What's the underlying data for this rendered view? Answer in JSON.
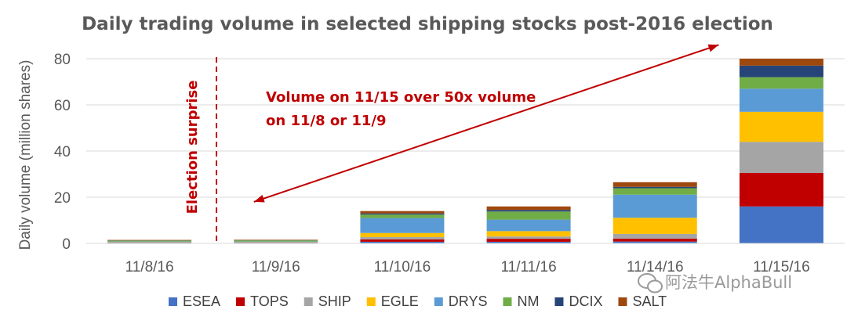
{
  "chart_data": {
    "type": "bar",
    "stacked": true,
    "title": "Daily trading volume in selected shipping stocks post-2016 election",
    "ylabel": "Daily volume (million shares)",
    "xlabel": "",
    "ylim": [
      0,
      80
    ],
    "yticks": [
      0,
      20,
      40,
      60,
      80
    ],
    "grid": true,
    "legend_position": "bottom",
    "categories": [
      "11/8/16",
      "11/9/16",
      "11/10/16",
      "11/11/16",
      "11/14/16",
      "11/15/16"
    ],
    "series": [
      {
        "name": "ESEA",
        "color": "#4472c4",
        "values": [
          0.3,
          0.3,
          0.7,
          0.7,
          0.8,
          16
        ]
      },
      {
        "name": "TOPS",
        "color": "#c00000",
        "values": [
          0.1,
          0.1,
          1.0,
          1.3,
          1.3,
          14.5
        ]
      },
      {
        "name": "SHIP",
        "color": "#a5a5a5",
        "values": [
          0.1,
          0.1,
          1.0,
          1.0,
          2.0,
          13.5
        ]
      },
      {
        "name": "EGLE",
        "color": "#ffc000",
        "values": [
          0.1,
          0.1,
          1.8,
          2.3,
          7.0,
          13
        ]
      },
      {
        "name": "DRYS",
        "color": "#5b9bd5",
        "values": [
          0.2,
          0.2,
          6.5,
          5.0,
          10.0,
          10
        ]
      },
      {
        "name": "NM",
        "color": "#70ad47",
        "values": [
          0.4,
          0.5,
          1.5,
          3.5,
          2.8,
          5
        ]
      },
      {
        "name": "DCIX",
        "color": "#264478",
        "values": [
          0.1,
          0.1,
          0.5,
          0.7,
          0.6,
          5
        ]
      },
      {
        "name": "SALT",
        "color": "#9e480e",
        "values": [
          0.2,
          0.2,
          1.0,
          1.5,
          2.0,
          3
        ]
      }
    ],
    "annotations": [
      {
        "text": "Election surprise",
        "kind": "vertical-dashed-line",
        "between": [
          "11/8/16",
          "11/9/16"
        ],
        "color": "#c00000"
      },
      {
        "text": "Volume on 11/15 over 50x volume",
        "kind": "callout",
        "color": "#c00000"
      },
      {
        "text": "on 11/8 or 11/9",
        "kind": "callout",
        "color": "#c00000"
      }
    ],
    "arrow": {
      "kind": "double-headed",
      "from": {
        "x": "11/9/16",
        "y": 18
      },
      "to": {
        "x": "11/15/16",
        "y": 86
      },
      "color": "#c00000"
    }
  },
  "watermark": "阿法牛AlphaBull"
}
